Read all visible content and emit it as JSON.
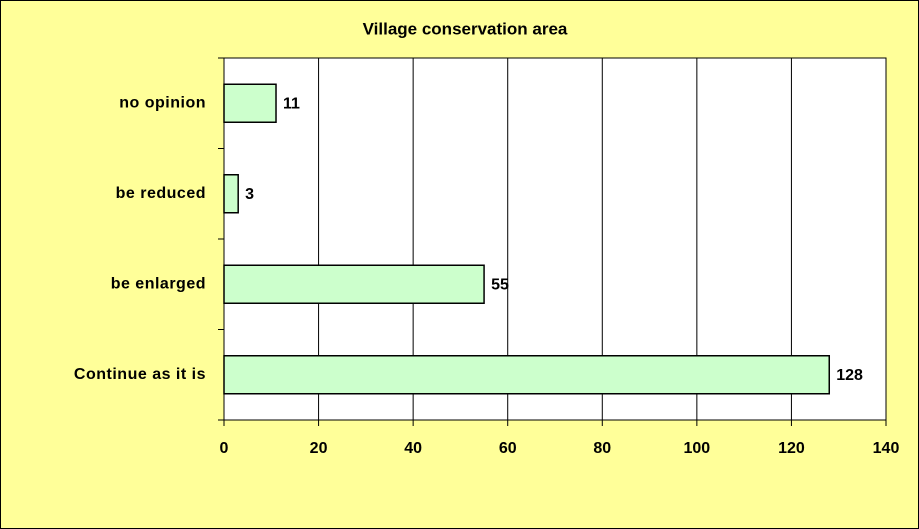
{
  "chart_data": {
    "type": "bar",
    "orientation": "horizontal",
    "title": "Village conservation area",
    "categories": [
      "Continue as it is",
      "be enlarged",
      "be reduced",
      "no opinion"
    ],
    "values": [
      128,
      55,
      3,
      11
    ],
    "color": "#ccffcc",
    "xlim": [
      0,
      140
    ],
    "xticks": [
      0,
      20,
      40,
      60,
      80,
      100,
      120,
      140
    ],
    "grid": true
  }
}
